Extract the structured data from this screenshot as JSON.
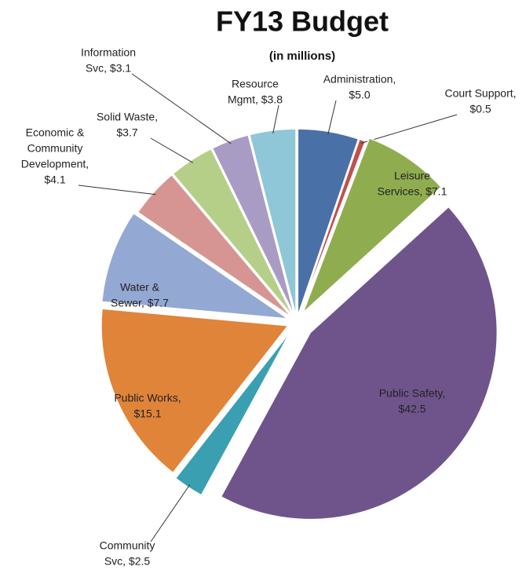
{
  "chart_data": {
    "type": "pie",
    "title": "FY13 Budget",
    "subtitle": "(in millions)",
    "labels": [
      [
        "Administration,",
        "$5.0"
      ],
      [
        "Court Support,",
        "$0.5"
      ],
      [
        "Leisure",
        "Services, $7.1"
      ],
      [
        "Public Safety,",
        "$42.5"
      ],
      [
        "Community",
        "Svc, $2.5"
      ],
      [
        "Public Works,",
        "$15.1"
      ],
      [
        "Water &",
        "Sewer, $7.7"
      ],
      [
        "Economic &",
        "Community",
        "Development,",
        "$4.1"
      ],
      [
        "Solid Waste,",
        "$3.7"
      ],
      [
        "Information",
        "Svc, $3.1"
      ],
      [
        "Resource",
        "Mgmt, $3.8"
      ]
    ],
    "values": [
      5.0,
      0.5,
      7.1,
      42.5,
      2.5,
      15.1,
      7.7,
      4.1,
      3.7,
      3.1,
      3.8
    ],
    "colors": [
      "#4a70a8",
      "#c0504d",
      "#8fad4f",
      "#6f548c",
      "#3a9fb0",
      "#e0843a",
      "#94a8d4",
      "#d69593",
      "#b5cf88",
      "#a99cc4",
      "#8fc6d8"
    ]
  }
}
